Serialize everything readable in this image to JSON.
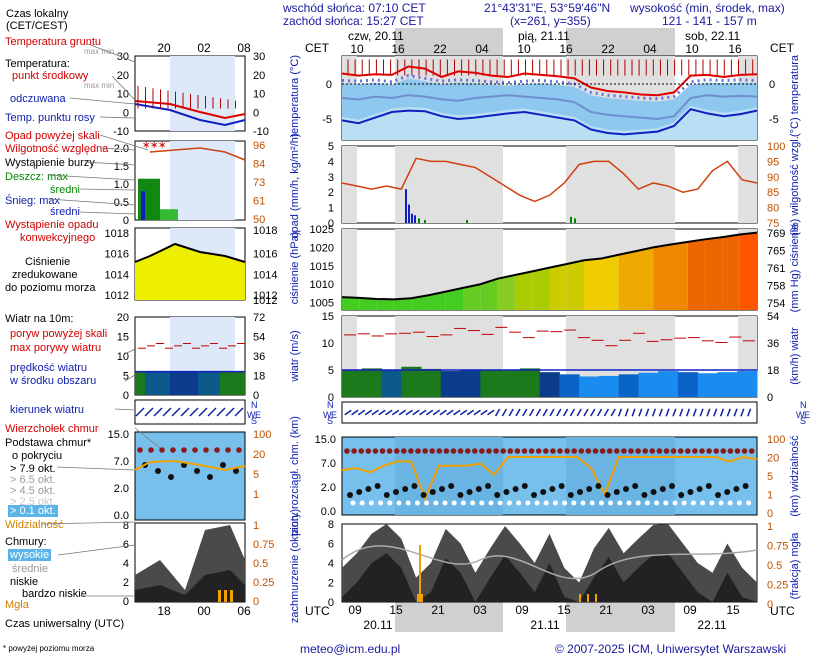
{
  "header": {
    "sunrise": "wschód słońca: 07:10 CET",
    "sunset": "zachód słońca: 15:27 CET",
    "coords": "21°43'31\"E, 53°59'46\"N",
    "grid": "(x=261,  y=355)",
    "alt_label": "wysokość (min, środek, max)",
    "alt_values": "121 - 141 - 157 m"
  },
  "legend": {
    "local_time": "Czas lokalny",
    "local_time2": "(CET/CEST)",
    "soil_temp": "Temperatura gruntu",
    "max_min": "max min",
    "temperature": "Temperatura:",
    "mid_point": "punkt środkowy",
    "max_min2": "max min",
    "feels": "odczuwana",
    "dew": "Temp. punktu rosy",
    "precip_above": "Opad powyżej skali",
    "humidity": "Wilgotność względna",
    "storm": "Wystąpienie burzy",
    "rain": "Deszcz: max",
    "rain_mid": "średni",
    "snow": "Śnieg: max",
    "snow_mid": "średni",
    "conv": "Wystąpienie opadu",
    "conv2": "konwekcyjnego",
    "pressure": "Ciśnienie",
    "pressure2": "zredukowane",
    "pressure3": "do poziomu morza",
    "wind10": "Wiatr na 10m:",
    "gust_above": "poryw powyżej skali",
    "gust_max": "max porywy wiatru",
    "wind_speed": "prędkość wiatru",
    "wind_speed2": "w środku obszaru",
    "wind_dir": "kierunek wiatru",
    "cloud_top": "Wierzchołek chmur",
    "cloud_base": "Podstawa chmur*",
    "cloud_base2": "o pokryciu",
    "okt79": "> 7.9 okt.",
    "okt65": "> 6.5 okt.",
    "okt45": "> 4.5 okt.",
    "okt25": "> 2.5 okt.",
    "okt01": "> 0.1 okt.",
    "visibility": "Widzialność",
    "clouds": "Chmury:",
    "high": "wysokie",
    "mid": "średnie",
    "low": "niskie",
    "vlow": "bardzo niskie",
    "fog": "Mgła",
    "utc_label": "Czas uniwersalny (UTC)",
    "footnote": "* powyżej poziomu morza"
  },
  "axes": {
    "cet": "CET",
    "utc": "UTC",
    "top_days": [
      "czw, 20.11",
      "pią, 21.11",
      "sob, 22.11"
    ],
    "top_hours": [
      "10",
      "16",
      "22",
      "04",
      "10",
      "16",
      "22",
      "04",
      "10",
      "16"
    ],
    "bottom_hours": [
      "09",
      "15",
      "21",
      "03",
      "09",
      "15",
      "21",
      "03",
      "09",
      "15"
    ],
    "bottom_days": [
      "20.11",
      "21.11",
      "22.11"
    ],
    "legend_top_hours": [
      "20",
      "02",
      "08"
    ],
    "legend_bottom_hours": [
      "18",
      "00",
      "06"
    ]
  },
  "panel_labels": {
    "temp_left": "temperatura (°C)",
    "temp_right": "(°C) temperatura",
    "precip_left": "opad (mm/h, kg/m²/h)",
    "precip_right": "(%) wilgotność wzgl.",
    "pres_left": "ciśnienie (hPa)",
    "pres_right": "(mm Hg) ciśnienie",
    "wind_left": "wiatr (m/s)",
    "wind_right": "(km/h) wiatr",
    "vis_left": "pion. rozciągł. chm. (km)",
    "vis_right": "(km) widzialność",
    "cloud_left": "zachmurzenie (oktanty)",
    "cloud_right": "(frakcja) mgła"
  },
  "ticks": {
    "temp_left": [
      "0",
      "-5"
    ],
    "temp_right": [
      "0",
      "-5"
    ],
    "temp_legend": [
      "30",
      "20",
      "10",
      "0",
      "-10"
    ],
    "precip_left": [
      "5",
      "4",
      "3",
      "2",
      "1",
      "0"
    ],
    "precip_right": [
      "100",
      "95",
      "90",
      "85",
      "80",
      "75"
    ],
    "precip_legend": [
      "2.0",
      "1.5",
      "1.0",
      "0.5",
      "0"
    ],
    "hum_legend": [
      "96",
      "84",
      "73",
      "61",
      "50"
    ],
    "pres_left": [
      "1025",
      "1020",
      "1015",
      "1010",
      "1005"
    ],
    "pres_right": [
      "769",
      "765",
      "761",
      "758",
      "754"
    ],
    "pres_legend": [
      "1018",
      "1016",
      "1014",
      "1012"
    ],
    "pres_legend_r": [
      "1016",
      "1014",
      "1012"
    ],
    "wind_left": [
      "15",
      "10",
      "5",
      "0"
    ],
    "wind_right": [
      "54",
      "36",
      "18",
      "0"
    ],
    "wind_legend": [
      "20",
      "15",
      "10",
      "5",
      "0"
    ],
    "wind_legend_r": [
      "72",
      "54",
      "36",
      "18",
      "0"
    ],
    "vis_left": [
      "15.0",
      "7.0",
      "2.0",
      "0.0"
    ],
    "vis_right": [
      "100",
      "20",
      "5",
      "1",
      "0"
    ],
    "vis_legend": [
      "15.0",
      "7.0",
      "2.0",
      "0.0"
    ],
    "vis_legend_r": [
      "100",
      "20",
      "5",
      "1"
    ],
    "cloud_left": [
      "8",
      "6",
      "4",
      "2",
      "0"
    ],
    "cloud_right": [
      "1",
      "0.75",
      "0.5",
      "0.25",
      "0"
    ],
    "dir_N": "N",
    "dir_W": "W",
    "dir_S": "S",
    "dir_E": "E"
  },
  "footer": {
    "email": "meteo@icm.edu.pl",
    "copyright": "© 2007-2025 ICM, Uniwersytet Warszawski"
  },
  "chart_data": [
    {
      "type": "line",
      "title": "temperatura",
      "ylabel": "°C",
      "ylim": [
        -8,
        4
      ],
      "series": [
        {
          "name": "max",
          "values": [
            1.5,
            1.2,
            1.4,
            1.3,
            2.5,
            2.2,
            1.0,
            1.8,
            1.6,
            1.2,
            1.0,
            1.5,
            1.3,
            1.1,
            0.8,
            -0.5,
            -1.0,
            -1.2,
            -1.5,
            -1.6,
            -1.2,
            1.2,
            1.3,
            1.0,
            1.3,
            1.4
          ]
        },
        {
          "name": "mid",
          "values": [
            0.5,
            0.4,
            0.6,
            0.3,
            1.2,
            0.8,
            0.4,
            0.6,
            0.5,
            0.3,
            0.2,
            0.4,
            0.5,
            0.3,
            0.0,
            -1.2,
            -1.6,
            -1.8,
            -2.0,
            -2.1,
            -1.8,
            0.3,
            0.6,
            0.5,
            0.6,
            0.5
          ]
        },
        {
          "name": "min",
          "values": [
            -5.2,
            -5.6,
            -4.8,
            -4.0,
            -3.8,
            -3.9,
            -4.6,
            -5.0,
            -4.8,
            -4.5,
            -4.2,
            -4.0,
            -4.4,
            -4.8,
            -5.2,
            -6.5,
            -7.0,
            -7.2,
            -7.0,
            -6.8,
            -6.0,
            -3.6,
            -4.2,
            -4.6,
            -4.3,
            -3.8
          ]
        },
        {
          "name": "feels",
          "values": [
            -2.0,
            -2.2,
            -1.8,
            -2.0,
            -1.6,
            -1.8,
            -2.2,
            -2.4,
            -2.0,
            -1.8,
            -1.6,
            -1.8,
            -2.0,
            -2.2,
            -2.6,
            -4.0,
            -4.4,
            -4.6,
            -4.8,
            -5.0,
            -4.6,
            -2.0,
            -1.6,
            -1.8,
            -1.7,
            -1.8
          ]
        }
      ]
    },
    {
      "type": "line",
      "title": "wilgotność wzgl.",
      "ylabel": "%",
      "ylim": [
        75,
        100
      ],
      "values": [
        88,
        87,
        86,
        87,
        86,
        96,
        95,
        95,
        94,
        93,
        90,
        87,
        84,
        82,
        84,
        88,
        94,
        95,
        95,
        91,
        86,
        88,
        87,
        85,
        86,
        92,
        95,
        89,
        88
      ]
    },
    {
      "type": "area",
      "title": "ciśnienie",
      "ylabel": "hPa",
      "ylim": [
        1003,
        1025
      ],
      "values": [
        1006.5,
        1006.3,
        1006.0,
        1005.9,
        1006.2,
        1007.0,
        1008.0,
        1009.0,
        1010.0,
        1011.5,
        1012.5,
        1013.5,
        1014.5,
        1015.5,
        1016.5,
        1017.0,
        1018.0,
        1019.0,
        1020.0,
        1020.8,
        1021.5,
        1022.2,
        1022.8,
        1023.5,
        1024.0
      ]
    },
    {
      "type": "area",
      "title": "wiatr",
      "ylabel": "m/s",
      "ylim": [
        0,
        15
      ],
      "series": [
        {
          "name": "prędkość",
          "values": [
            5.0,
            5.3,
            5.0,
            5.6,
            5.2,
            4.8,
            5.0,
            5.1,
            4.9,
            5.3,
            4.6,
            4.2,
            3.8,
            3.9,
            4.2,
            4.5,
            4.8,
            4.6,
            4.4,
            4.6,
            4.8
          ]
        },
        {
          "name": "porywy",
          "values": [
            11.5,
            11.7,
            11.3,
            11.7,
            11.8,
            12.0,
            11.2,
            11.5,
            12.7,
            12.3,
            11.6,
            12.9,
            12.0,
            11.0,
            12.2,
            12.1,
            12.4,
            11.0,
            10.5,
            9.5,
            10.5,
            11.8,
            10.3,
            10.6,
            10.9,
            11.0,
            10.4,
            10.1,
            11.1,
            10.4
          ]
        }
      ]
    },
    {
      "type": "line",
      "title": "widzialność",
      "ylabel": "km",
      "ylim": [
        0,
        100
      ],
      "values": [
        16,
        17,
        15,
        18,
        20,
        20,
        3,
        18,
        18,
        18,
        19,
        14,
        22,
        22,
        22,
        22,
        22,
        22,
        17,
        5,
        22,
        22,
        22,
        22,
        22,
        22,
        22,
        22,
        20,
        22,
        21
      ]
    },
    {
      "type": "area",
      "title": "zachmurzenie",
      "ylabel": "oktanty",
      "ylim": [
        0,
        8
      ],
      "values": [
        3.5,
        5.0,
        7.0,
        8.0,
        6.5,
        2.5,
        4.0,
        7.5,
        6.0,
        3.0,
        5.5,
        7.8,
        6.0,
        4.0,
        7.0,
        3.5,
        2.0,
        5.5,
        7.6,
        5.0,
        6.5,
        7.9,
        8.0,
        6.0,
        4.0,
        3.0,
        6.0,
        3.5,
        2.0
      ]
    }
  ]
}
